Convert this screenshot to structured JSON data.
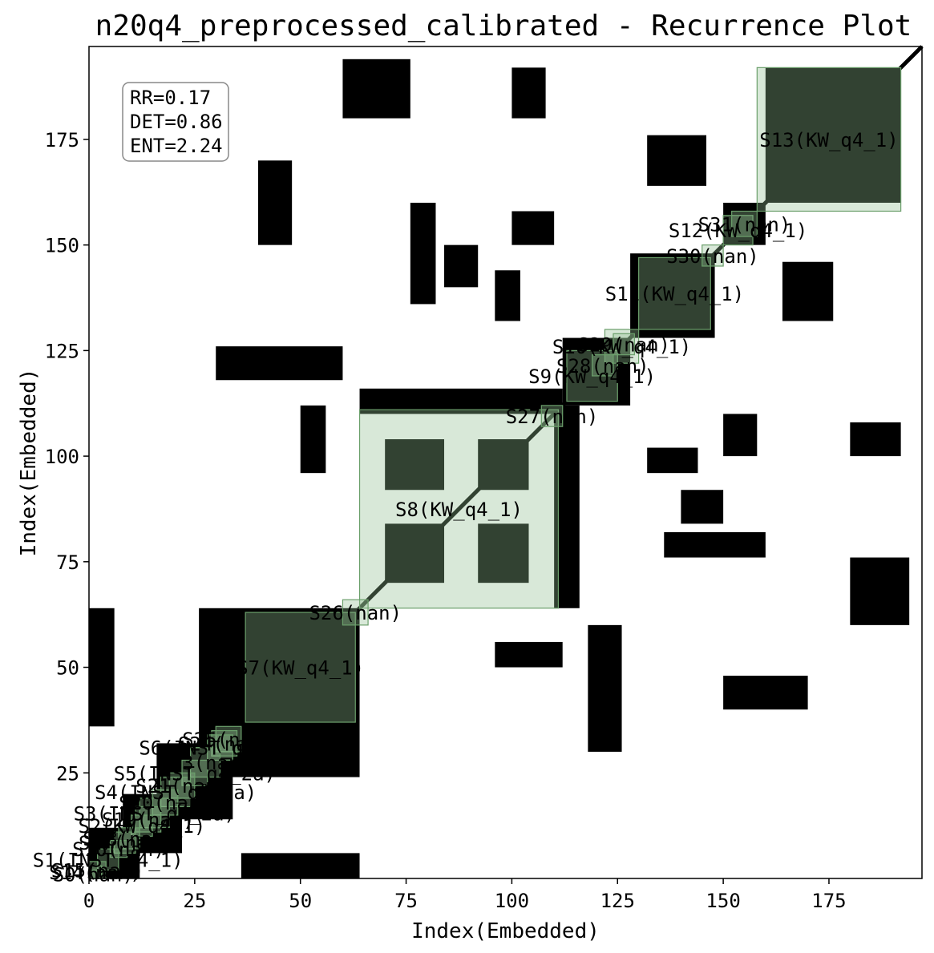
{
  "chart_data": {
    "type": "heatmap",
    "title": "n20q4_preprocessed_calibrated - Recurrence Plot",
    "xlabel": "Index(Embedded)",
    "ylabel": "Index(Embedded)",
    "xlim": [
      0,
      197
    ],
    "ylim": [
      0,
      197
    ],
    "x_ticks": [
      "0",
      "25",
      "50",
      "75",
      "100",
      "125",
      "150",
      "175"
    ],
    "y_ticks": [
      "25",
      "50",
      "75",
      "100",
      "125",
      "150",
      "175"
    ],
    "tick_values": [
      0,
      25,
      50,
      75,
      100,
      125,
      150,
      175
    ],
    "stats": {
      "rr": "RR=0.17",
      "det": "DET=0.86",
      "ent": "ENT=2.24"
    },
    "colors": {
      "recurrence": "#000000",
      "segment_fill": "#8fbc8f",
      "segment_edge": "#6b9f6b",
      "background": "#ffffff"
    },
    "segments": [
      {
        "label": "S13(KW_q4_1)",
        "start": 158,
        "end": 192
      },
      {
        "label": "S8(KW_q4_1)",
        "start": 64,
        "end": 111
      },
      {
        "label": "S7(KW_q4_1)",
        "start": 37,
        "end": 63
      },
      {
        "label": "S11(KW_q4_1)",
        "start": 130,
        "end": 147
      },
      {
        "label": "S9(KW_q4_1)",
        "start": 113,
        "end": 125
      },
      {
        "label": "S12(KW_q4_1)",
        "start": 150,
        "end": 157
      },
      {
        "label": "S10(KW_q4_1)",
        "start": 122,
        "end": 130
      },
      {
        "label": "S31(nan)",
        "start": 152,
        "end": 158
      },
      {
        "label": "S30(nan)",
        "start": 145,
        "end": 150
      },
      {
        "label": "S29(nan)",
        "start": 124,
        "end": 129
      },
      {
        "label": "S28(nan)",
        "start": 119,
        "end": 124
      },
      {
        "label": "S27(nan)",
        "start": 107,
        "end": 112
      },
      {
        "label": "S26(nan)",
        "start": 60,
        "end": 66
      },
      {
        "label": "S25(nan)",
        "start": 30,
        "end": 36
      },
      {
        "label": "S24(nan)",
        "start": 29,
        "end": 35
      },
      {
        "label": "S6(INST_q4_2b)",
        "start": 28,
        "end": 34
      },
      {
        "label": "S23(nan)",
        "start": 24,
        "end": 31
      },
      {
        "label": "S5(INST_q4_2a)",
        "start": 22,
        "end": 28
      },
      {
        "label": "S21(nan)",
        "start": 19,
        "end": 25
      },
      {
        "label": "S4(INST_q4_2a)",
        "start": 17,
        "end": 24
      },
      {
        "label": "S20(nan)",
        "start": 15,
        "end": 21
      },
      {
        "label": "S3(INST_q4_2a)",
        "start": 12,
        "end": 19
      },
      {
        "label": "S19(nan)",
        "start": 11,
        "end": 17
      },
      {
        "label": "S2(KW_q4_1)",
        "start": 10,
        "end": 15
      },
      {
        "label": "S18(nan)",
        "start": 7,
        "end": 12
      },
      {
        "label": "S17(nan)",
        "start": 6,
        "end": 11
      },
      {
        "label": "S16(nan)",
        "start": 5,
        "end": 9
      },
      {
        "label": "S1(INST_q4_1)",
        "start": 2,
        "end": 7
      },
      {
        "label": "S15(nan)",
        "start": 0,
        "end": 4
      },
      {
        "label": "S14(nan)",
        "start": 0,
        "end": 3
      },
      {
        "label": "S0(nan)",
        "start": 0,
        "end": 2
      }
    ],
    "recurrence_blocks": [
      [
        0,
        12,
        0,
        12
      ],
      [
        8,
        22,
        6,
        20
      ],
      [
        16,
        34,
        14,
        32
      ],
      [
        26,
        64,
        24,
        64
      ],
      [
        36,
        64,
        0,
        6
      ],
      [
        0,
        6,
        36,
        64
      ],
      [
        42,
        60,
        42,
        60
      ],
      [
        70,
        84,
        70,
        84
      ],
      [
        70,
        84,
        92,
        104
      ],
      [
        92,
        104,
        70,
        84
      ],
      [
        92,
        104,
        92,
        104
      ],
      [
        64,
        112,
        110,
        116
      ],
      [
        110,
        116,
        64,
        112
      ],
      [
        112,
        128,
        112,
        128
      ],
      [
        128,
        148,
        128,
        148
      ],
      [
        132,
        144,
        96,
        102
      ],
      [
        96,
        102,
        132,
        144
      ],
      [
        150,
        160,
        150,
        160
      ],
      [
        160,
        192,
        160,
        192
      ],
      [
        164,
        176,
        164,
        176
      ],
      [
        176,
        190,
        176,
        190
      ],
      [
        164,
        176,
        132,
        146
      ],
      [
        132,
        146,
        164,
        176
      ],
      [
        50,
        56,
        96,
        112
      ],
      [
        96,
        112,
        50,
        56
      ],
      [
        76,
        82,
        136,
        160
      ],
      [
        136,
        160,
        76,
        82
      ],
      [
        118,
        126,
        30,
        60
      ],
      [
        30,
        60,
        118,
        126
      ],
      [
        180,
        194,
        60,
        76
      ],
      [
        60,
        76,
        180,
        194
      ],
      [
        100,
        108,
        180,
        192
      ],
      [
        180,
        192,
        100,
        108
      ],
      [
        150,
        158,
        100,
        110
      ],
      [
        100,
        110,
        150,
        158
      ],
      [
        84,
        92,
        140,
        150
      ],
      [
        140,
        150,
        84,
        92
      ],
      [
        40,
        48,
        150,
        170
      ],
      [
        150,
        170,
        40,
        48
      ]
    ]
  }
}
